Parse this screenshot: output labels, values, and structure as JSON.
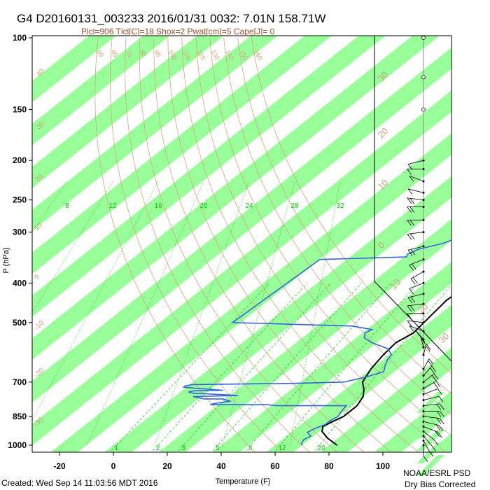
{
  "header": {
    "title": "G4 D20160131_003233 2016/01/31 0032:  7.01N 158.71W",
    "subtitle": "Plcl=906 Tlcl[C]=18 Shox=2 Pwat[cm]=5 Cape[J]= 0"
  },
  "footer": {
    "created": "Created: Wed Sep 14 11:03:56 MDT 2016",
    "org": "NOAA/ESRL PSD",
    "note": "Dry Bias Corrected"
  },
  "colors": {
    "band": "#99ff99",
    "temperature": "#000000",
    "dewpoint": "#3366dd",
    "adiabat": "#d2a67e",
    "mixing": "#00cc00",
    "subtitle": "#a0522d",
    "wetbulb_label": "#c8a07a"
  },
  "chart_data": {
    "type": "skew-t log-p",
    "xlabel": "Temperature (F)",
    "ylabel": "P (hPa)",
    "x_ticks": [
      -20,
      0,
      20,
      40,
      60,
      80,
      100
    ],
    "x_tick_labels": [
      "-20",
      "0",
      "20",
      "40",
      "60",
      "80",
      "100"
    ],
    "p_ticks": [
      100,
      150,
      200,
      250,
      300,
      400,
      500,
      700,
      850,
      1000
    ],
    "p_tick_labels": [
      "100",
      "150",
      "200",
      "250",
      "300",
      "400",
      "500",
      "700",
      "850",
      "1000"
    ],
    "x_range": [
      -30,
      110
    ],
    "p_range": [
      1050,
      100
    ],
    "skew_F_per_decade": 190,
    "temperature_profile": [
      [
        1000,
        83
      ],
      [
        960,
        76
      ],
      [
        925,
        71
      ],
      [
        900,
        69
      ],
      [
        880,
        70
      ],
      [
        850,
        72
      ],
      [
        800,
        72
      ],
      [
        760,
        70
      ],
      [
        730,
        67
      ],
      [
        700,
        63
      ],
      [
        650,
        60
      ],
      [
        600,
        58
      ],
      [
        560,
        57
      ],
      [
        530,
        59
      ],
      [
        500,
        58
      ],
      [
        470,
        57
      ],
      [
        440,
        56
      ],
      [
        410,
        57
      ],
      [
        380,
        57
      ],
      [
        350,
        56
      ],
      [
        330,
        52
      ],
      [
        300,
        47
      ],
      [
        270,
        42
      ],
      [
        250,
        38
      ],
      [
        230,
        34
      ],
      [
        210,
        32
      ],
      [
        190,
        30
      ]
    ],
    "dewpoint_profile": [
      [
        1000,
        70
      ],
      [
        990,
        69
      ],
      [
        970,
        68
      ],
      [
        950,
        69
      ],
      [
        930,
        66
      ],
      [
        910,
        67
      ],
      [
        890,
        69
      ],
      [
        870,
        69
      ],
      [
        850,
        70
      ],
      [
        830,
        69
      ],
      [
        800,
        68
      ],
      [
        800,
        42
      ],
      [
        795,
        38
      ],
      [
        795,
        17
      ],
      [
        790,
        18
      ],
      [
        780,
        23
      ],
      [
        770,
        19
      ],
      [
        770,
        12
      ],
      [
        760,
        7
      ],
      [
        755,
        23
      ],
      [
        750,
        14
      ],
      [
        745,
        5
      ],
      [
        740,
        3
      ],
      [
        735,
        5
      ],
      [
        733,
        15
      ],
      [
        725,
        4
      ],
      [
        720,
        -1
      ],
      [
        715,
        -1
      ],
      [
        710,
        1
      ],
      [
        705,
        38
      ],
      [
        700,
        56
      ],
      [
        680,
        62
      ],
      [
        660,
        66
      ],
      [
        640,
        64
      ],
      [
        620,
        62
      ],
      [
        600,
        61
      ],
      [
        580,
        57
      ],
      [
        560,
        48
      ],
      [
        545,
        43
      ],
      [
        530,
        41
      ],
      [
        520,
        42
      ],
      [
        510,
        33
      ],
      [
        500,
        -13
      ],
      [
        350,
        -10
      ],
      [
        345,
        21
      ],
      [
        340,
        20
      ],
      [
        330,
        22
      ],
      [
        320,
        28
      ],
      [
        310,
        31
      ],
      [
        300,
        35
      ],
      [
        285,
        37
      ],
      [
        270,
        35
      ],
      [
        260,
        27
      ],
      [
        250,
        24
      ],
      [
        235,
        23
      ],
      [
        225,
        21
      ],
      [
        215,
        20
      ]
    ],
    "dry_adiabat_labels": [
      "50",
      "60",
      "70",
      "80",
      "90",
      "100",
      "110",
      "120",
      "130",
      "140",
      "150",
      "160"
    ],
    "dry_adiabat_values": [
      50,
      60,
      70,
      80,
      90,
      100,
      110,
      120,
      130,
      140,
      150,
      160
    ],
    "moist_adiabat_values": [
      8,
      12,
      16,
      20,
      24,
      28,
      32
    ],
    "moist_adiabat_labels": [
      "8",
      "12",
      "16",
      "20",
      "24",
      "28",
      "32"
    ],
    "mixing_ratio_values": [
      1,
      2,
      3,
      5,
      8,
      12,
      20
    ],
    "mixing_ratio_labels": [
      "1",
      "2",
      "3",
      "5",
      "8",
      "12",
      "20"
    ],
    "wet_bulb_labels": [
      "30",
      "20",
      "10",
      "0",
      "10",
      "20",
      "30"
    ],
    "pwat_labels": [
      "40",
      "30",
      "20",
      "10",
      "0",
      "-10",
      "-20",
      "-30"
    ],
    "wind_barbs": [
      [
        1000,
        180,
        8
      ],
      [
        975,
        160,
        10
      ],
      [
        950,
        150,
        12
      ],
      [
        925,
        140,
        10
      ],
      [
        900,
        120,
        15
      ],
      [
        875,
        110,
        15
      ],
      [
        850,
        100,
        20
      ],
      [
        825,
        90,
        18
      ],
      [
        800,
        80,
        15
      ],
      [
        775,
        70,
        12
      ],
      [
        750,
        60,
        10
      ],
      [
        725,
        50,
        15
      ],
      [
        700,
        40,
        15
      ],
      [
        675,
        30,
        18
      ],
      [
        650,
        20,
        15
      ],
      [
        600,
        10,
        15
      ],
      [
        575,
        350,
        15
      ],
      [
        550,
        330,
        15
      ],
      [
        525,
        300,
        12
      ],
      [
        500,
        280,
        10
      ],
      [
        475,
        270,
        12
      ],
      [
        450,
        260,
        15
      ],
      [
        425,
        250,
        15
      ],
      [
        400,
        240,
        12
      ],
      [
        375,
        230,
        15
      ],
      [
        350,
        240,
        15
      ],
      [
        325,
        250,
        20
      ],
      [
        300,
        260,
        20
      ],
      [
        280,
        270,
        20
      ],
      [
        260,
        270,
        15
      ],
      [
        250,
        280,
        15
      ],
      [
        240,
        290,
        10
      ],
      [
        225,
        300,
        10
      ],
      [
        210,
        270,
        8
      ],
      [
        200,
        250,
        6
      ],
      [
        150,
        0,
        0
      ],
      [
        125,
        0,
        0
      ],
      [
        100,
        0,
        0
      ]
    ]
  }
}
